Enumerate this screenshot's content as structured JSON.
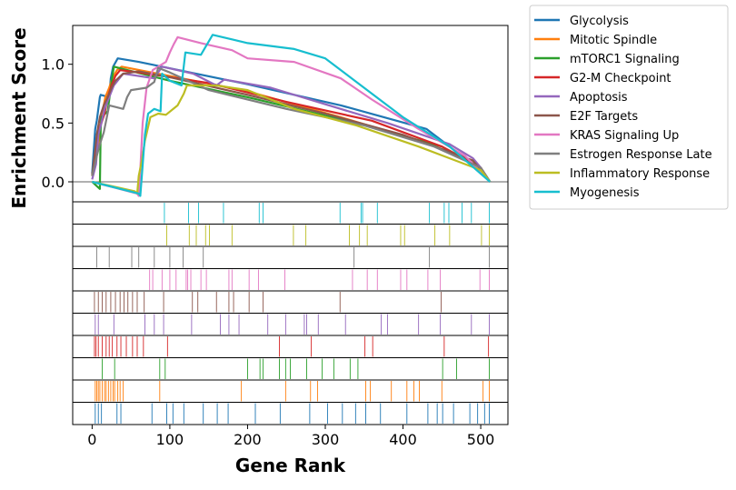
{
  "chart_data": {
    "type": "line",
    "xlabel": "Gene Rank",
    "ylabel": "Enrichment Score",
    "xlim": [
      -25,
      535
    ],
    "ylim": [
      -0.17,
      1.33
    ],
    "x_ticks": [
      0,
      100,
      200,
      300,
      400,
      500
    ],
    "y_ticks": [
      0.0,
      0.5,
      1.0
    ],
    "x_tick_labels": [
      "0",
      "100",
      "200",
      "300",
      "400",
      "500"
    ],
    "y_tick_labels": [
      "0.0",
      "0.5",
      "1.0"
    ],
    "baseline": 0,
    "legend_position": "outside-top-right",
    "series": [
      {
        "name": "Glycolysis",
        "color": "#1f77b4",
        "points": [
          [
            0,
            0.07
          ],
          [
            4,
            0.45
          ],
          [
            6,
            0.52
          ],
          [
            10,
            0.72
          ],
          [
            11,
            0.74
          ],
          [
            22,
            0.72
          ],
          [
            24,
            0.88
          ],
          [
            27,
            0.98
          ],
          [
            33,
            1.05
          ],
          [
            60,
            1.02
          ],
          [
            200,
            0.83
          ],
          [
            320,
            0.65
          ],
          [
            430,
            0.45
          ],
          [
            470,
            0.25
          ],
          [
            500,
            0.1
          ],
          [
            512,
            0.0
          ]
        ]
      },
      {
        "name": "Mitotic Spindle",
        "color": "#ff7f0e",
        "points": [
          [
            0,
            0.06
          ],
          [
            8,
            0.28
          ],
          [
            10,
            0.45
          ],
          [
            14,
            0.62
          ],
          [
            17,
            0.72
          ],
          [
            22,
            0.8
          ],
          [
            26,
            0.88
          ],
          [
            32,
            0.95
          ],
          [
            38,
            0.98
          ],
          [
            100,
            0.9
          ],
          [
            200,
            0.77
          ],
          [
            320,
            0.55
          ],
          [
            420,
            0.35
          ],
          [
            490,
            0.18
          ],
          [
            512,
            0.0
          ]
        ]
      },
      {
        "name": "mTORC1 Signaling",
        "color": "#2ca02c",
        "points": [
          [
            0,
            0.0
          ],
          [
            10,
            -0.06
          ],
          [
            11,
            0.45
          ],
          [
            12,
            0.55
          ],
          [
            20,
            0.6
          ],
          [
            25,
            0.85
          ],
          [
            28,
            0.98
          ],
          [
            40,
            0.96
          ],
          [
            100,
            0.86
          ],
          [
            200,
            0.72
          ],
          [
            340,
            0.5
          ],
          [
            450,
            0.3
          ],
          [
            500,
            0.12
          ],
          [
            512,
            0.0
          ]
        ]
      },
      {
        "name": "G2-M Checkpoint",
        "color": "#d62728",
        "points": [
          [
            0,
            0.05
          ],
          [
            4,
            0.22
          ],
          [
            8,
            0.42
          ],
          [
            12,
            0.5
          ],
          [
            16,
            0.58
          ],
          [
            20,
            0.72
          ],
          [
            25,
            0.82
          ],
          [
            30,
            0.9
          ],
          [
            36,
            0.95
          ],
          [
            60,
            0.93
          ],
          [
            150,
            0.84
          ],
          [
            250,
            0.68
          ],
          [
            360,
            0.52
          ],
          [
            450,
            0.3
          ],
          [
            500,
            0.12
          ],
          [
            512,
            0.0
          ]
        ]
      },
      {
        "name": "Apoptosis",
        "color": "#9467bd",
        "points": [
          [
            0,
            0.02
          ],
          [
            5,
            0.15
          ],
          [
            8,
            0.4
          ],
          [
            12,
            0.5
          ],
          [
            16,
            0.62
          ],
          [
            22,
            0.72
          ],
          [
            28,
            0.82
          ],
          [
            40,
            0.92
          ],
          [
            80,
            0.88
          ],
          [
            90,
            0.98
          ],
          [
            130,
            0.92
          ],
          [
            160,
            0.82
          ],
          [
            170,
            0.87
          ],
          [
            230,
            0.8
          ],
          [
            290,
            0.68
          ],
          [
            380,
            0.5
          ],
          [
            460,
            0.32
          ],
          [
            490,
            0.2
          ],
          [
            500,
            0.12
          ],
          [
            512,
            0.0
          ]
        ]
      },
      {
        "name": "E2F Targets",
        "color": "#8c564b",
        "points": [
          [
            0,
            0.05
          ],
          [
            3,
            0.22
          ],
          [
            6,
            0.4
          ],
          [
            10,
            0.55
          ],
          [
            15,
            0.65
          ],
          [
            20,
            0.72
          ],
          [
            25,
            0.8
          ],
          [
            30,
            0.86
          ],
          [
            40,
            0.92
          ],
          [
            60,
            0.94
          ],
          [
            100,
            0.89
          ],
          [
            200,
            0.74
          ],
          [
            300,
            0.58
          ],
          [
            400,
            0.4
          ],
          [
            490,
            0.18
          ],
          [
            512,
            0.0
          ]
        ]
      },
      {
        "name": "KRAS Signaling Up",
        "color": "#e377c2",
        "points": [
          [
            0,
            0.0
          ],
          [
            58,
            -0.1
          ],
          [
            60,
            -0.12
          ],
          [
            62,
            0.1
          ],
          [
            65,
            0.5
          ],
          [
            70,
            0.8
          ],
          [
            78,
            0.95
          ],
          [
            95,
            1.02
          ],
          [
            100,
            1.1
          ],
          [
            105,
            1.17
          ],
          [
            110,
            1.23
          ],
          [
            140,
            1.18
          ],
          [
            180,
            1.12
          ],
          [
            200,
            1.05
          ],
          [
            260,
            1.02
          ],
          [
            320,
            0.88
          ],
          [
            360,
            0.7
          ],
          [
            420,
            0.45
          ],
          [
            480,
            0.22
          ],
          [
            512,
            0.0
          ]
        ]
      },
      {
        "name": "Estrogen Response Late",
        "color": "#7f7f7f",
        "points": [
          [
            0,
            0.05
          ],
          [
            6,
            0.22
          ],
          [
            10,
            0.32
          ],
          [
            15,
            0.42
          ],
          [
            18,
            0.52
          ],
          [
            22,
            0.65
          ],
          [
            40,
            0.62
          ],
          [
            45,
            0.72
          ],
          [
            50,
            0.78
          ],
          [
            70,
            0.8
          ],
          [
            80,
            0.85
          ],
          [
            85,
            0.97
          ],
          [
            100,
            0.93
          ],
          [
            150,
            0.78
          ],
          [
            250,
            0.62
          ],
          [
            350,
            0.48
          ],
          [
            440,
            0.3
          ],
          [
            500,
            0.12
          ],
          [
            512,
            0.0
          ]
        ]
      },
      {
        "name": "Inflammatory Response",
        "color": "#bcbd22",
        "points": [
          [
            0,
            0.0
          ],
          [
            55,
            -0.08
          ],
          [
            58,
            -0.1
          ],
          [
            60,
            0.05
          ],
          [
            64,
            0.18
          ],
          [
            68,
            0.35
          ],
          [
            75,
            0.55
          ],
          [
            85,
            0.58
          ],
          [
            95,
            0.57
          ],
          [
            110,
            0.65
          ],
          [
            118,
            0.75
          ],
          [
            122,
            0.82
          ],
          [
            160,
            0.82
          ],
          [
            200,
            0.78
          ],
          [
            260,
            0.62
          ],
          [
            340,
            0.48
          ],
          [
            420,
            0.3
          ],
          [
            500,
            0.1
          ],
          [
            512,
            0.0
          ]
        ]
      },
      {
        "name": "Myogenesis",
        "color": "#17becf",
        "points": [
          [
            0,
            0.0
          ],
          [
            60,
            -0.1
          ],
          [
            62,
            -0.12
          ],
          [
            64,
            0.05
          ],
          [
            68,
            0.4
          ],
          [
            72,
            0.58
          ],
          [
            80,
            0.62
          ],
          [
            88,
            0.6
          ],
          [
            90,
            0.92
          ],
          [
            100,
            0.86
          ],
          [
            115,
            0.82
          ],
          [
            120,
            1.1
          ],
          [
            140,
            1.08
          ],
          [
            155,
            1.25
          ],
          [
            200,
            1.18
          ],
          [
            260,
            1.13
          ],
          [
            300,
            1.05
          ],
          [
            340,
            0.85
          ],
          [
            400,
            0.55
          ],
          [
            460,
            0.3
          ],
          [
            512,
            0.0
          ]
        ]
      }
    ],
    "hit_rows": [
      {
        "name": "Glycolysis",
        "color": "#1f77b4",
        "hits": [
          4,
          8,
          12,
          32,
          37,
          77,
          96,
          104,
          118,
          143,
          161,
          175,
          210,
          242,
          280,
          303,
          322,
          339,
          352,
          371,
          405,
          432,
          444,
          451,
          465,
          486,
          496,
          505,
          511
        ]
      },
      {
        "name": "Mitotic Spindle",
        "color": "#ff7f0e",
        "hits": [
          4,
          6,
          8,
          10,
          13,
          16,
          18,
          21,
          24,
          27,
          29,
          33,
          36,
          40,
          87,
          192,
          249,
          281,
          290,
          352,
          358,
          385,
          405,
          414,
          421,
          450,
          503,
          511
        ]
      },
      {
        "name": "mTORC1 Signaling",
        "color": "#2ca02c",
        "hits": [
          13,
          29,
          87,
          94,
          200,
          216,
          220,
          241,
          249,
          255,
          276,
          296,
          311,
          332,
          342,
          451,
          469,
          511
        ]
      },
      {
        "name": "G2-M Checkpoint",
        "color": "#d62728",
        "hits": [
          3,
          5,
          8,
          13,
          18,
          22,
          26,
          32,
          37,
          44,
          52,
          58,
          66,
          97,
          241,
          282,
          351,
          361,
          453,
          510
        ]
      },
      {
        "name": "Apoptosis",
        "color": "#9467bd",
        "hits": [
          4,
          8,
          28,
          68,
          80,
          92,
          128,
          165,
          176,
          189,
          226,
          249,
          273,
          276,
          291,
          326,
          372,
          380,
          420,
          448,
          488,
          511
        ]
      },
      {
        "name": "E2F Targets",
        "color": "#8c564b",
        "hits": [
          3,
          8,
          13,
          18,
          24,
          30,
          36,
          41,
          46,
          52,
          58,
          67,
          92,
          129,
          136,
          160,
          176,
          182,
          202,
          220,
          319,
          449
        ]
      },
      {
        "name": "KRAS Signaling Up",
        "color": "#e377c2",
        "hits": [
          74,
          78,
          90,
          100,
          108,
          121,
          123,
          127,
          140,
          147,
          176,
          180,
          202,
          214,
          248,
          335,
          354,
          367,
          397,
          405,
          432,
          448,
          499,
          511
        ]
      },
      {
        "name": "Estrogen Response Late",
        "color": "#7f7f7f",
        "hits": [
          6,
          22,
          51,
          60,
          80,
          100,
          117,
          143,
          337,
          434,
          511
        ]
      },
      {
        "name": "Inflammatory Response",
        "color": "#bcbd22",
        "hits": [
          96,
          125,
          134,
          146,
          151,
          180,
          259,
          275,
          331,
          344,
          354,
          397,
          402,
          441,
          460,
          501,
          511
        ]
      },
      {
        "name": "Myogenesis",
        "color": "#17becf",
        "hits": [
          93,
          124,
          137,
          169,
          215,
          220,
          319,
          346,
          348,
          367,
          434,
          453,
          459,
          476,
          488,
          511
        ]
      }
    ]
  }
}
